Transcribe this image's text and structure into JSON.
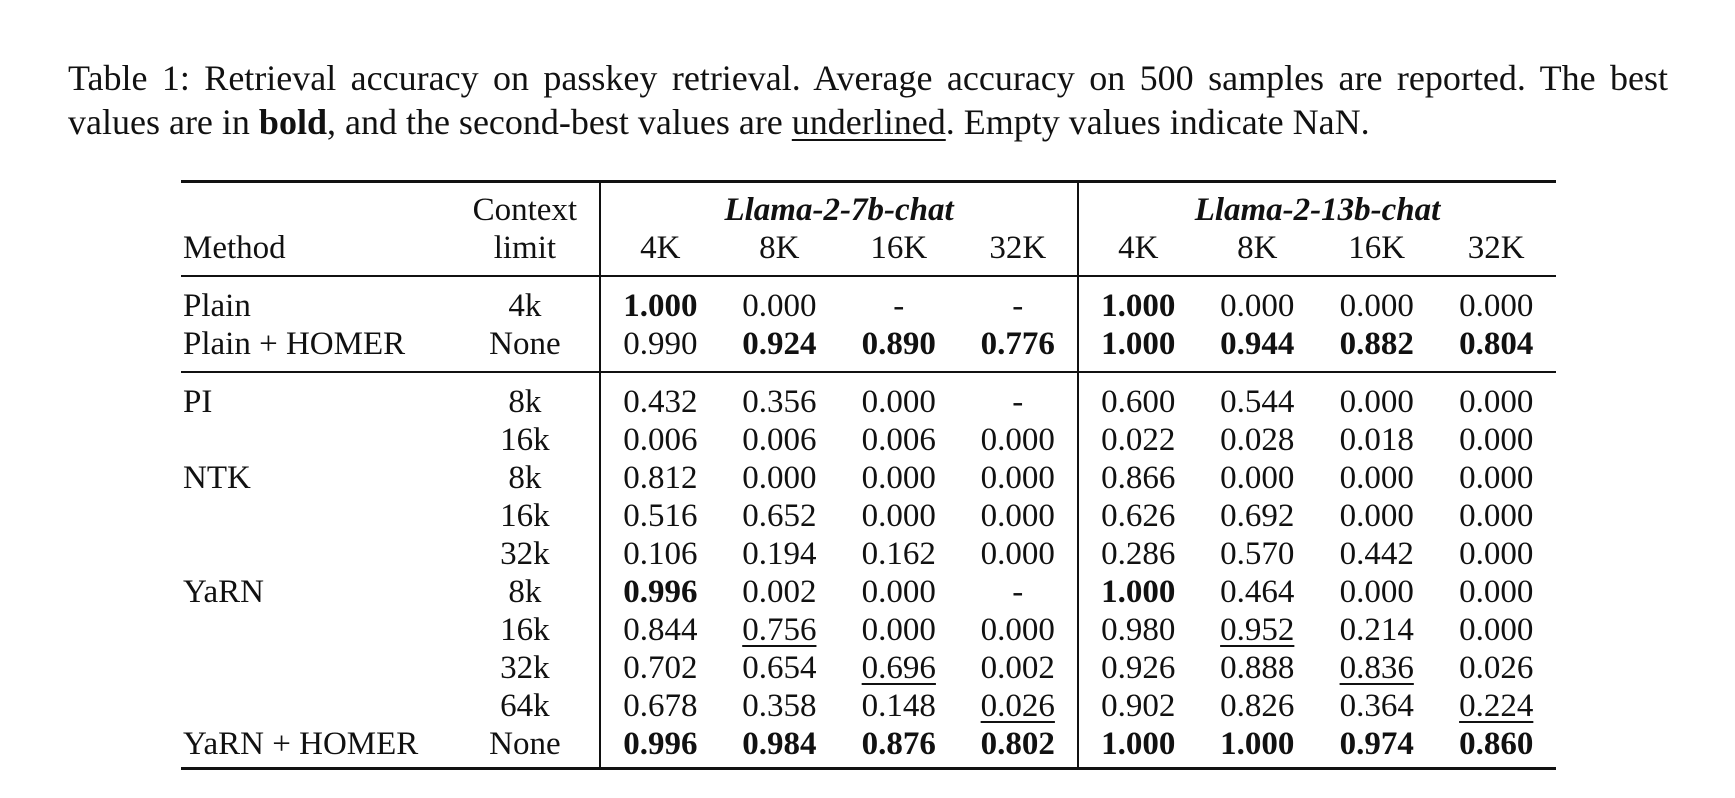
{
  "caption": {
    "part1": "Table 1: Retrieval accuracy on passkey retrieval.  Average accuracy on 500 samples are reported. The best values are in ",
    "bold_word": "bold",
    "part2": ", and the second-best values are ",
    "underline_word": "underlined",
    "part3": ". Empty values indicate NaN."
  },
  "header": {
    "method": "Method",
    "context_line1": "Context",
    "context_line2": "limit",
    "model_7b": "Llama-2-7b-chat",
    "model_13b": "Llama-2-13b-chat",
    "lengths": [
      "4K",
      "8K",
      "16K",
      "32K"
    ]
  },
  "rows": [
    {
      "method": "Plain",
      "ctx": "4k",
      "group_start": true,
      "group_end": false,
      "cells": [
        [
          "1.000",
          "b"
        ],
        [
          "0.000",
          ""
        ],
        [
          "-",
          ""
        ],
        [
          "-",
          ""
        ],
        [
          "1.000",
          "b"
        ],
        [
          "0.000",
          ""
        ],
        [
          "0.000",
          ""
        ],
        [
          "0.000",
          ""
        ]
      ]
    },
    {
      "method": "Plain + HOMER",
      "ctx": "None",
      "group_start": false,
      "group_end": true,
      "cells": [
        [
          "0.990",
          ""
        ],
        [
          "0.924",
          "b"
        ],
        [
          "0.890",
          "b"
        ],
        [
          "0.776",
          "b"
        ],
        [
          "1.000",
          "b"
        ],
        [
          "0.944",
          "b"
        ],
        [
          "0.882",
          "b"
        ],
        [
          "0.804",
          "b"
        ]
      ]
    },
    {
      "method": "PI",
      "ctx": "8k",
      "group_start": true,
      "group_end": false,
      "cells": [
        [
          "0.432",
          ""
        ],
        [
          "0.356",
          ""
        ],
        [
          "0.000",
          ""
        ],
        [
          "-",
          ""
        ],
        [
          "0.600",
          ""
        ],
        [
          "0.544",
          ""
        ],
        [
          "0.000",
          ""
        ],
        [
          "0.000",
          ""
        ]
      ]
    },
    {
      "method": "",
      "ctx": "16k",
      "group_start": false,
      "group_end": false,
      "cells": [
        [
          "0.006",
          ""
        ],
        [
          "0.006",
          ""
        ],
        [
          "0.006",
          ""
        ],
        [
          "0.000",
          ""
        ],
        [
          "0.022",
          ""
        ],
        [
          "0.028",
          ""
        ],
        [
          "0.018",
          ""
        ],
        [
          "0.000",
          ""
        ]
      ]
    },
    {
      "method": "NTK",
      "ctx": "8k",
      "group_start": false,
      "group_end": false,
      "cells": [
        [
          "0.812",
          ""
        ],
        [
          "0.000",
          ""
        ],
        [
          "0.000",
          ""
        ],
        [
          "0.000",
          ""
        ],
        [
          "0.866",
          ""
        ],
        [
          "0.000",
          ""
        ],
        [
          "0.000",
          ""
        ],
        [
          "0.000",
          ""
        ]
      ]
    },
    {
      "method": "",
      "ctx": "16k",
      "group_start": false,
      "group_end": false,
      "cells": [
        [
          "0.516",
          ""
        ],
        [
          "0.652",
          ""
        ],
        [
          "0.000",
          ""
        ],
        [
          "0.000",
          ""
        ],
        [
          "0.626",
          ""
        ],
        [
          "0.692",
          ""
        ],
        [
          "0.000",
          ""
        ],
        [
          "0.000",
          ""
        ]
      ]
    },
    {
      "method": "",
      "ctx": "32k",
      "group_start": false,
      "group_end": false,
      "cells": [
        [
          "0.106",
          ""
        ],
        [
          "0.194",
          ""
        ],
        [
          "0.162",
          ""
        ],
        [
          "0.000",
          ""
        ],
        [
          "0.286",
          ""
        ],
        [
          "0.570",
          ""
        ],
        [
          "0.442",
          ""
        ],
        [
          "0.000",
          ""
        ]
      ]
    },
    {
      "method": "YaRN",
      "ctx": "8k",
      "group_start": false,
      "group_end": false,
      "cells": [
        [
          "0.996",
          "b"
        ],
        [
          "0.002",
          ""
        ],
        [
          "0.000",
          ""
        ],
        [
          "-",
          ""
        ],
        [
          "1.000",
          "b"
        ],
        [
          "0.464",
          ""
        ],
        [
          "0.000",
          ""
        ],
        [
          "0.000",
          ""
        ]
      ]
    },
    {
      "method": "",
      "ctx": "16k",
      "group_start": false,
      "group_end": false,
      "cells": [
        [
          "0.844",
          ""
        ],
        [
          "0.756",
          "u"
        ],
        [
          "0.000",
          ""
        ],
        [
          "0.000",
          ""
        ],
        [
          "0.980",
          ""
        ],
        [
          "0.952",
          "u"
        ],
        [
          "0.214",
          ""
        ],
        [
          "0.000",
          ""
        ]
      ]
    },
    {
      "method": "",
      "ctx": "32k",
      "group_start": false,
      "group_end": false,
      "cells": [
        [
          "0.702",
          ""
        ],
        [
          "0.654",
          ""
        ],
        [
          "0.696",
          "u"
        ],
        [
          "0.002",
          ""
        ],
        [
          "0.926",
          ""
        ],
        [
          "0.888",
          ""
        ],
        [
          "0.836",
          "u"
        ],
        [
          "0.026",
          ""
        ]
      ]
    },
    {
      "method": "",
      "ctx": "64k",
      "group_start": false,
      "group_end": false,
      "cells": [
        [
          "0.678",
          ""
        ],
        [
          "0.358",
          ""
        ],
        [
          "0.148",
          ""
        ],
        [
          "0.026",
          "u"
        ],
        [
          "0.902",
          ""
        ],
        [
          "0.826",
          ""
        ],
        [
          "0.364",
          ""
        ],
        [
          "0.224",
          "u"
        ]
      ]
    },
    {
      "method": "YaRN + HOMER",
      "ctx": "None",
      "group_start": false,
      "group_end": false,
      "cells": [
        [
          "0.996",
          "b"
        ],
        [
          "0.984",
          "b"
        ],
        [
          "0.876",
          "b"
        ],
        [
          "0.802",
          "b"
        ],
        [
          "1.000",
          "b"
        ],
        [
          "1.000",
          "b"
        ],
        [
          "0.974",
          "b"
        ],
        [
          "0.860",
          "b"
        ]
      ]
    }
  ]
}
